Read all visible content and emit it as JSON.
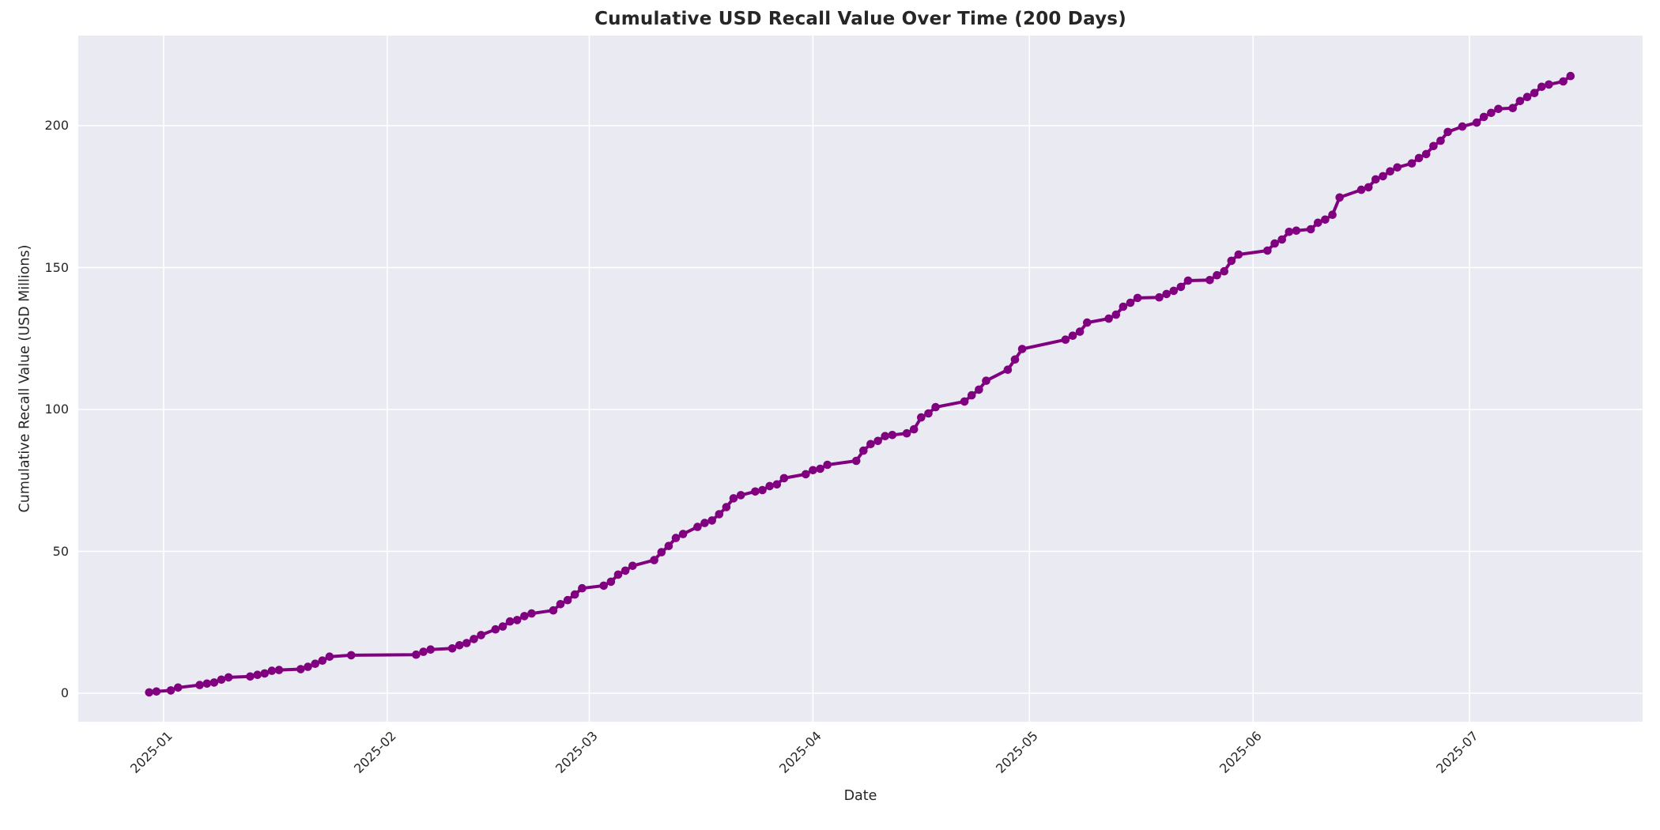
{
  "chart_data": {
    "type": "line",
    "title": "Cumulative USD Recall Value Over Time (200 Days)",
    "xlabel": "Date",
    "ylabel": "Cumulative Recall Value (USD Millions)",
    "x_ticks": [
      "2025-01",
      "2025-02",
      "2025-03",
      "2025-04",
      "2025-05",
      "2025-06",
      "2025-07"
    ],
    "y_ticks": [
      0,
      50,
      100,
      150,
      200
    ],
    "ylim": [
      -10,
      232
    ],
    "xlim": [
      "2024-12-20",
      "2025-07-25"
    ],
    "grid": true,
    "legend": false,
    "style": {
      "line_color": "#800080",
      "marker": "circle",
      "marker_color": "#800080",
      "plot_bg": "#eaeaf2",
      "grid_color": "#ffffff",
      "text_color": "#262626",
      "figure_bg": "#ffffff"
    },
    "point_format": [
      "date",
      "cumulative_value_usd_millions"
    ],
    "series": [
      {
        "name": "Cumulative USD Recall Value",
        "points": [
          [
            "2024-12-30",
            0.3
          ],
          [
            "2024-12-31",
            0.6
          ],
          [
            "2025-01-02",
            1.0
          ],
          [
            "2025-01-03",
            2.0
          ],
          [
            "2025-01-06",
            2.9
          ],
          [
            "2025-01-07",
            3.4
          ],
          [
            "2025-01-08",
            3.8
          ],
          [
            "2025-01-09",
            4.8
          ],
          [
            "2025-01-10",
            5.6
          ],
          [
            "2025-01-13",
            5.9
          ],
          [
            "2025-01-14",
            6.5
          ],
          [
            "2025-01-15",
            7.0
          ],
          [
            "2025-01-16",
            7.9
          ],
          [
            "2025-01-17",
            8.2
          ],
          [
            "2025-01-20",
            8.5
          ],
          [
            "2025-01-21",
            9.3
          ],
          [
            "2025-01-22",
            10.4
          ],
          [
            "2025-01-23",
            11.5
          ],
          [
            "2025-01-24",
            12.9
          ],
          [
            "2025-01-27",
            13.4
          ],
          [
            "2025-02-05",
            13.6
          ],
          [
            "2025-02-06",
            14.6
          ],
          [
            "2025-02-07",
            15.4
          ],
          [
            "2025-02-10",
            15.8
          ],
          [
            "2025-02-11",
            16.9
          ],
          [
            "2025-02-12",
            17.7
          ],
          [
            "2025-02-13",
            19.1
          ],
          [
            "2025-02-14",
            20.5
          ],
          [
            "2025-02-16",
            22.5
          ],
          [
            "2025-02-17",
            23.5
          ],
          [
            "2025-02-18",
            25.3
          ],
          [
            "2025-02-19",
            25.8
          ],
          [
            "2025-02-20",
            27.2
          ],
          [
            "2025-02-21",
            28.1
          ],
          [
            "2025-02-24",
            29.2
          ],
          [
            "2025-02-25",
            31.4
          ],
          [
            "2025-02-26",
            32.8
          ],
          [
            "2025-02-27",
            34.8
          ],
          [
            "2025-02-28",
            37.0
          ],
          [
            "2025-03-03",
            37.9
          ],
          [
            "2025-03-04",
            39.3
          ],
          [
            "2025-03-05",
            41.8
          ],
          [
            "2025-03-06",
            43.2
          ],
          [
            "2025-03-07",
            44.9
          ],
          [
            "2025-03-10",
            46.9
          ],
          [
            "2025-03-11",
            49.7
          ],
          [
            "2025-03-12",
            51.9
          ],
          [
            "2025-03-13",
            54.7
          ],
          [
            "2025-03-14",
            56.1
          ],
          [
            "2025-03-16",
            58.6
          ],
          [
            "2025-03-17",
            60.0
          ],
          [
            "2025-03-18",
            60.9
          ],
          [
            "2025-03-19",
            63.1
          ],
          [
            "2025-03-20",
            65.6
          ],
          [
            "2025-03-21",
            68.7
          ],
          [
            "2025-03-22",
            69.8
          ],
          [
            "2025-03-24",
            71.1
          ],
          [
            "2025-03-25",
            71.6
          ],
          [
            "2025-03-26",
            73.0
          ],
          [
            "2025-03-27",
            73.6
          ],
          [
            "2025-03-28",
            75.8
          ],
          [
            "2025-03-31",
            77.2
          ],
          [
            "2025-04-01",
            78.6
          ],
          [
            "2025-04-02",
            79.1
          ],
          [
            "2025-04-03",
            80.5
          ],
          [
            "2025-04-07",
            81.9
          ],
          [
            "2025-04-08",
            85.5
          ],
          [
            "2025-04-09",
            87.8
          ],
          [
            "2025-04-10",
            88.9
          ],
          [
            "2025-04-11",
            90.6
          ],
          [
            "2025-04-12",
            91.0
          ],
          [
            "2025-04-14",
            91.6
          ],
          [
            "2025-04-15",
            93.0
          ],
          [
            "2025-04-16",
            97.2
          ],
          [
            "2025-04-17",
            98.6
          ],
          [
            "2025-04-18",
            100.8
          ],
          [
            "2025-04-22",
            102.8
          ],
          [
            "2025-04-23",
            105.0
          ],
          [
            "2025-04-24",
            107.0
          ],
          [
            "2025-04-25",
            110.1
          ],
          [
            "2025-04-28",
            114.0
          ],
          [
            "2025-04-29",
            117.6
          ],
          [
            "2025-04-30",
            121.3
          ],
          [
            "2025-05-06",
            124.6
          ],
          [
            "2025-05-07",
            126.0
          ],
          [
            "2025-05-08",
            127.4
          ],
          [
            "2025-05-09",
            130.6
          ],
          [
            "2025-05-12",
            132.0
          ],
          [
            "2025-05-13",
            133.4
          ],
          [
            "2025-05-14",
            136.2
          ],
          [
            "2025-05-15",
            137.6
          ],
          [
            "2025-05-16",
            139.3
          ],
          [
            "2025-05-19",
            139.5
          ],
          [
            "2025-05-20",
            140.7
          ],
          [
            "2025-05-21",
            141.8
          ],
          [
            "2025-05-22",
            143.2
          ],
          [
            "2025-05-23",
            145.4
          ],
          [
            "2025-05-26",
            145.6
          ],
          [
            "2025-05-27",
            147.3
          ],
          [
            "2025-05-28",
            148.7
          ],
          [
            "2025-05-29",
            152.4
          ],
          [
            "2025-05-30",
            154.6
          ],
          [
            "2025-06-03",
            156.0
          ],
          [
            "2025-06-04",
            158.5
          ],
          [
            "2025-06-05",
            159.9
          ],
          [
            "2025-06-06",
            162.6
          ],
          [
            "2025-06-07",
            163.0
          ],
          [
            "2025-06-09",
            163.5
          ],
          [
            "2025-06-10",
            165.8
          ],
          [
            "2025-06-11",
            166.9
          ],
          [
            "2025-06-12",
            168.6
          ],
          [
            "2025-06-13",
            174.7
          ],
          [
            "2025-06-16",
            177.4
          ],
          [
            "2025-06-17",
            178.3
          ],
          [
            "2025-06-18",
            181.1
          ],
          [
            "2025-06-19",
            182.2
          ],
          [
            "2025-06-20",
            183.9
          ],
          [
            "2025-06-21",
            185.3
          ],
          [
            "2025-06-23",
            186.7
          ],
          [
            "2025-06-24",
            188.6
          ],
          [
            "2025-06-25",
            190.0
          ],
          [
            "2025-06-26",
            192.8
          ],
          [
            "2025-06-27",
            194.7
          ],
          [
            "2025-06-28",
            197.8
          ],
          [
            "2025-06-30",
            199.7
          ],
          [
            "2025-07-02",
            201.1
          ],
          [
            "2025-07-03",
            203.1
          ],
          [
            "2025-07-04",
            204.5
          ],
          [
            "2025-07-05",
            205.9
          ],
          [
            "2025-07-07",
            206.2
          ],
          [
            "2025-07-08",
            208.7
          ],
          [
            "2025-07-09",
            210.1
          ],
          [
            "2025-07-10",
            211.5
          ],
          [
            "2025-07-11",
            213.7
          ],
          [
            "2025-07-12",
            214.5
          ],
          [
            "2025-07-14",
            215.6
          ],
          [
            "2025-07-15",
            217.5
          ]
        ]
      }
    ]
  }
}
